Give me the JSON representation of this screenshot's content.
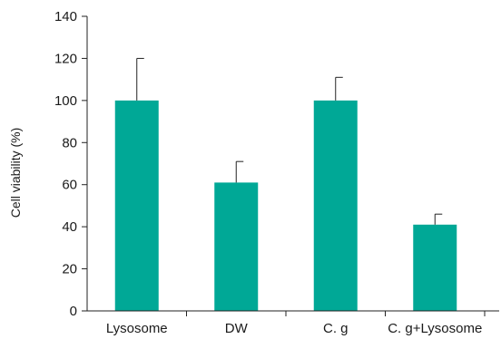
{
  "chart_data": {
    "type": "bar",
    "categories": [
      "Lysosome",
      "DW",
      "C. g",
      "C. g+Lysosome"
    ],
    "values": [
      100,
      61,
      100,
      41
    ],
    "error_upper": [
      20,
      10,
      11,
      5
    ],
    "ylabel": "Cell viability (%)",
    "xlabel": "",
    "ylim": [
      0,
      140
    ],
    "yticks": [
      0,
      20,
      40,
      60,
      80,
      100,
      120,
      140
    ],
    "ytick_labels": [
      "0",
      "20",
      "40",
      "60",
      "80",
      "100",
      "120",
      "140"
    ],
    "bar_color": "#00a896",
    "grid": false
  }
}
